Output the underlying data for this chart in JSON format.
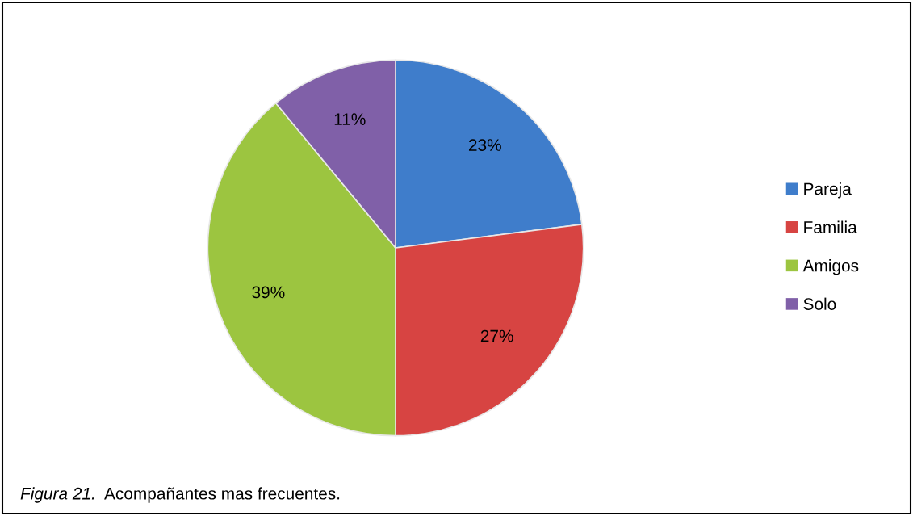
{
  "chart_data": {
    "type": "pie",
    "categories": [
      "Pareja",
      "Familia",
      "Amigos",
      "Solo"
    ],
    "values": [
      23,
      27,
      39,
      11
    ],
    "colors": [
      "#3f7dcb",
      "#d74442",
      "#9cc540",
      "#8060a8"
    ],
    "value_labels": [
      "23%",
      "27%",
      "39%",
      "11%"
    ],
    "legend": "right",
    "annotations": [
      "Figura 21.",
      "Acompañantes mas frecuentes."
    ]
  }
}
